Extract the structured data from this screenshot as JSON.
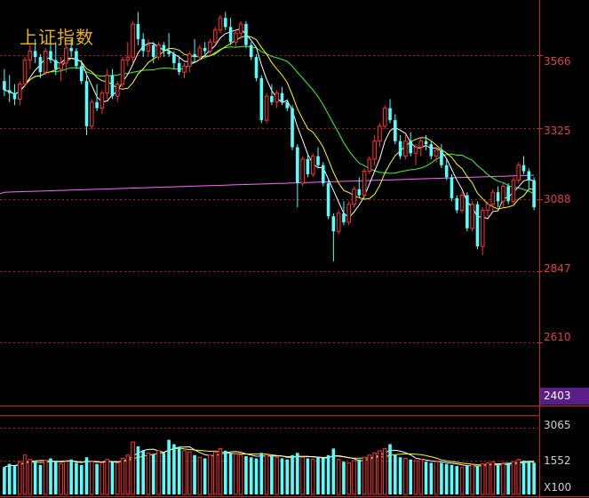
{
  "chart_data": {
    "type": "candlestick",
    "title": "上证指数",
    "y_ticks": [
      "3566",
      "3325",
      "3088",
      "2847",
      "2610"
    ],
    "y_min_label": "2403",
    "ylim": [
      2403,
      3750
    ],
    "volume_ticks": [
      "3065",
      "1552"
    ],
    "volume_unit": "X100",
    "volume_lim": [
      0,
      3500
    ],
    "colors": {
      "up": "#ff3333",
      "down": "#55ffff",
      "ma5": "#ffffff",
      "ma10": "#ffff00",
      "ma20": "#33ff33",
      "ma250": "#ff66ff",
      "grid": "#aa2222",
      "axis": "#cc2222"
    },
    "candles": [
      [
        3480,
        3520,
        3430,
        3450
      ],
      [
        3450,
        3500,
        3410,
        3440
      ],
      [
        3440,
        3470,
        3400,
        3420
      ],
      [
        3420,
        3480,
        3400,
        3470
      ],
      [
        3470,
        3560,
        3460,
        3550
      ],
      [
        3550,
        3600,
        3520,
        3580
      ],
      [
        3580,
        3620,
        3540,
        3560
      ],
      [
        3560,
        3570,
        3490,
        3510
      ],
      [
        3510,
        3590,
        3500,
        3580
      ],
      [
        3580,
        3620,
        3540,
        3550
      ],
      [
        3550,
        3610,
        3500,
        3520
      ],
      [
        3520,
        3560,
        3480,
        3540
      ],
      [
        3540,
        3600,
        3510,
        3590
      ],
      [
        3590,
        3620,
        3560,
        3580
      ],
      [
        3580,
        3590,
        3520,
        3530
      ],
      [
        3530,
        3550,
        3470,
        3480
      ],
      [
        3480,
        3500,
        3300,
        3330
      ],
      [
        3330,
        3420,
        3320,
        3410
      ],
      [
        3410,
        3470,
        3380,
        3390
      ],
      [
        3390,
        3450,
        3370,
        3440
      ],
      [
        3440,
        3520,
        3420,
        3500
      ],
      [
        3500,
        3520,
        3420,
        3430
      ],
      [
        3430,
        3480,
        3410,
        3470
      ],
      [
        3470,
        3560,
        3460,
        3550
      ],
      [
        3550,
        3610,
        3530,
        3560
      ],
      [
        3560,
        3680,
        3540,
        3670
      ],
      [
        3670,
        3710,
        3600,
        3620
      ],
      [
        3620,
        3640,
        3560,
        3580
      ],
      [
        3580,
        3620,
        3560,
        3600
      ],
      [
        3600,
        3610,
        3540,
        3560
      ],
      [
        3560,
        3610,
        3550,
        3600
      ],
      [
        3600,
        3610,
        3560,
        3580
      ],
      [
        3580,
        3640,
        3560,
        3570
      ],
      [
        3570,
        3580,
        3520,
        3540
      ],
      [
        3540,
        3560,
        3500,
        3510
      ],
      [
        3510,
        3540,
        3490,
        3530
      ],
      [
        3530,
        3580,
        3510,
        3570
      ],
      [
        3570,
        3620,
        3540,
        3560
      ],
      [
        3560,
        3600,
        3550,
        3590
      ],
      [
        3590,
        3610,
        3570,
        3580
      ],
      [
        3580,
        3620,
        3570,
        3610
      ],
      [
        3610,
        3660,
        3600,
        3650
      ],
      [
        3650,
        3700,
        3640,
        3690
      ],
      [
        3690,
        3710,
        3650,
        3660
      ],
      [
        3660,
        3690,
        3600,
        3610
      ],
      [
        3610,
        3650,
        3590,
        3640
      ],
      [
        3640,
        3680,
        3620,
        3670
      ],
      [
        3670,
        3680,
        3590,
        3600
      ],
      [
        3600,
        3610,
        3550,
        3560
      ],
      [
        3560,
        3570,
        3480,
        3490
      ],
      [
        3490,
        3500,
        3340,
        3350
      ],
      [
        3350,
        3440,
        3340,
        3430
      ],
      [
        3430,
        3470,
        3400,
        3410
      ],
      [
        3410,
        3450,
        3390,
        3440
      ],
      [
        3440,
        3460,
        3400,
        3410
      ],
      [
        3410,
        3420,
        3380,
        3390
      ],
      [
        3390,
        3400,
        3250,
        3260
      ],
      [
        3260,
        3270,
        3060,
        3140
      ],
      [
        3140,
        3230,
        3130,
        3220
      ],
      [
        3220,
        3240,
        3160,
        3170
      ],
      [
        3170,
        3240,
        3160,
        3230
      ],
      [
        3230,
        3260,
        3190,
        3200
      ],
      [
        3200,
        3210,
        3130,
        3140
      ],
      [
        3140,
        3150,
        3020,
        3030
      ],
      [
        3030,
        3040,
        2880,
        2980
      ],
      [
        2980,
        3050,
        2970,
        3040
      ],
      [
        3040,
        3080,
        3000,
        3010
      ],
      [
        3010,
        3080,
        3000,
        3070
      ],
      [
        3070,
        3130,
        3060,
        3120
      ],
      [
        3120,
        3160,
        3090,
        3100
      ],
      [
        3100,
        3190,
        3090,
        3180
      ],
      [
        3180,
        3230,
        3170,
        3220
      ],
      [
        3220,
        3300,
        3200,
        3280
      ],
      [
        3280,
        3340,
        3260,
        3330
      ],
      [
        3330,
        3400,
        3320,
        3390
      ],
      [
        3390,
        3420,
        3340,
        3350
      ],
      [
        3350,
        3370,
        3270,
        3280
      ],
      [
        3280,
        3300,
        3220,
        3230
      ],
      [
        3230,
        3300,
        3220,
        3280
      ],
      [
        3280,
        3310,
        3230,
        3240
      ],
      [
        3240,
        3270,
        3200,
        3260
      ],
      [
        3260,
        3290,
        3230,
        3280
      ],
      [
        3280,
        3300,
        3250,
        3270
      ],
      [
        3270,
        3280,
        3220,
        3230
      ],
      [
        3230,
        3260,
        3210,
        3250
      ],
      [
        3250,
        3270,
        3190,
        3200
      ],
      [
        3200,
        3220,
        3150,
        3160
      ],
      [
        3160,
        3170,
        3080,
        3090
      ],
      [
        3090,
        3100,
        3040,
        3050
      ],
      [
        3050,
        3110,
        3040,
        3100
      ],
      [
        3100,
        3110,
        2980,
        2990
      ],
      [
        2990,
        3080,
        2980,
        3070
      ],
      [
        3070,
        3080,
        2920,
        2930
      ],
      [
        2930,
        3060,
        2900,
        3050
      ],
      [
        3050,
        3080,
        3030,
        3070
      ],
      [
        3070,
        3120,
        3050,
        3110
      ],
      [
        3110,
        3130,
        3060,
        3080
      ],
      [
        3080,
        3140,
        3060,
        3130
      ],
      [
        3130,
        3140,
        3070,
        3080
      ],
      [
        3080,
        3160,
        3070,
        3150
      ],
      [
        3150,
        3210,
        3140,
        3200
      ],
      [
        3200,
        3230,
        3170,
        3180
      ],
      [
        3180,
        3190,
        3120,
        3150
      ],
      [
        3150,
        3160,
        3050,
        3060
      ]
    ],
    "volume": [
      1250,
      1400,
      1300,
      1500,
      1800,
      1600,
      1500,
      1350,
      1550,
      1650,
      1500,
      1400,
      1500,
      1600,
      1450,
      1350,
      1700,
      1500,
      1400,
      1450,
      1600,
      1500,
      1450,
      1650,
      1800,
      2400,
      2200,
      2000,
      1900,
      1850,
      2000,
      1900,
      2500,
      2300,
      2150,
      2000,
      1950,
      1800,
      1700,
      1650,
      1800,
      1950,
      2100,
      2000,
      1900,
      1850,
      1800,
      1750,
      1700,
      1650,
      1900,
      1800,
      1750,
      1700,
      1650,
      1600,
      1800,
      1900,
      1700,
      1650,
      1600,
      1700,
      1650,
      1800,
      2100,
      1600,
      1500,
      1450,
      1550,
      1600,
      1700,
      1800,
      1900,
      2000,
      2100,
      2300,
      1800,
      1700,
      1650,
      1600,
      1550,
      1600,
      1500,
      1450,
      1500,
      1450,
      1400,
      1350,
      1300,
      1250,
      1300,
      1350,
      1300,
      1400,
      1450,
      1500,
      1350,
      1400,
      1450,
      1500,
      1600,
      1550,
      1500,
      1450
    ]
  }
}
